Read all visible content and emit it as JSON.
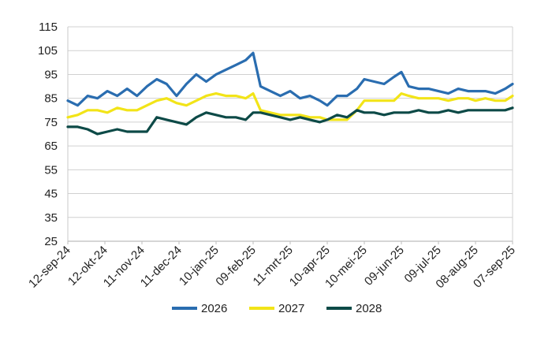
{
  "chart_data": {
    "type": "line",
    "title": "",
    "xlabel": "",
    "ylabel": "",
    "ylim": [
      25,
      115
    ],
    "yticks": [
      25,
      35,
      45,
      55,
      65,
      75,
      85,
      95,
      105,
      115
    ],
    "xlim": [
      "2024-09-12",
      "2025-09-07"
    ],
    "xticks": [
      "12-sep-24",
      "12-okt-24",
      "11-nov-24",
      "11-dec-24",
      "10-jan-25",
      "09-feb-25",
      "11-mrt-25",
      "10-apr-25",
      "10-mei-25",
      "09-jun-25",
      "09-jul-25",
      "08-aug-25",
      "07-sep-25"
    ],
    "grid": "horizontal",
    "legend_position": "bottom",
    "series": [
      {
        "name": "2026",
        "color": "#2a6db0",
        "x": [
          "2024-09-12",
          "2024-09-20",
          "2024-09-28",
          "2024-10-06",
          "2024-10-14",
          "2024-10-22",
          "2024-10-30",
          "2024-11-07",
          "2024-11-15",
          "2024-11-23",
          "2024-12-01",
          "2024-12-09",
          "2024-12-17",
          "2024-12-25",
          "2025-01-02",
          "2025-01-10",
          "2025-01-18",
          "2025-01-26",
          "2025-02-03",
          "2025-02-09",
          "2025-02-15",
          "2025-02-23",
          "2025-03-03",
          "2025-03-11",
          "2025-03-19",
          "2025-03-27",
          "2025-04-04",
          "2025-04-10",
          "2025-04-18",
          "2025-04-26",
          "2025-05-04",
          "2025-05-10",
          "2025-05-18",
          "2025-05-26",
          "2025-06-03",
          "2025-06-09",
          "2025-06-15",
          "2025-06-23",
          "2025-07-01",
          "2025-07-09",
          "2025-07-17",
          "2025-07-25",
          "2025-08-02",
          "2025-08-08",
          "2025-08-16",
          "2025-08-24",
          "2025-09-01",
          "2025-09-07"
        ],
        "values": [
          84,
          82,
          86,
          85,
          88,
          86,
          89,
          86,
          90,
          93,
          91,
          86,
          91,
          95,
          92,
          95,
          97,
          99,
          101,
          104,
          90,
          88,
          86,
          88,
          85,
          86,
          84,
          82,
          86,
          86,
          89,
          93,
          92,
          91,
          94,
          96,
          90,
          89,
          89,
          88,
          87,
          89,
          88,
          88,
          88,
          87,
          89,
          91
        ]
      },
      {
        "name": "2027",
        "color": "#f2e418",
        "x": [
          "2024-09-12",
          "2024-09-20",
          "2024-09-28",
          "2024-10-06",
          "2024-10-14",
          "2024-10-22",
          "2024-10-30",
          "2024-11-07",
          "2024-11-15",
          "2024-11-23",
          "2024-12-01",
          "2024-12-09",
          "2024-12-17",
          "2024-12-25",
          "2025-01-02",
          "2025-01-10",
          "2025-01-18",
          "2025-01-26",
          "2025-02-03",
          "2025-02-09",
          "2025-02-15",
          "2025-02-23",
          "2025-03-03",
          "2025-03-11",
          "2025-03-19",
          "2025-03-27",
          "2025-04-04",
          "2025-04-10",
          "2025-04-18",
          "2025-04-26",
          "2025-05-04",
          "2025-05-10",
          "2025-05-18",
          "2025-05-26",
          "2025-06-03",
          "2025-06-09",
          "2025-06-15",
          "2025-06-23",
          "2025-07-01",
          "2025-07-09",
          "2025-07-17",
          "2025-07-25",
          "2025-08-02",
          "2025-08-08",
          "2025-08-16",
          "2025-08-24",
          "2025-09-01",
          "2025-09-07"
        ],
        "values": [
          77,
          78,
          80,
          80,
          79,
          81,
          80,
          80,
          82,
          84,
          85,
          83,
          82,
          84,
          86,
          87,
          86,
          86,
          85,
          87,
          80,
          79,
          78,
          78,
          78,
          77,
          77,
          76,
          76,
          76,
          80,
          84,
          84,
          84,
          84,
          87,
          86,
          85,
          85,
          85,
          84,
          85,
          85,
          84,
          85,
          84,
          84,
          86
        ]
      },
      {
        "name": "2028",
        "color": "#0d4a47",
        "x": [
          "2024-09-12",
          "2024-09-20",
          "2024-09-28",
          "2024-10-06",
          "2024-10-14",
          "2024-10-22",
          "2024-10-30",
          "2024-11-07",
          "2024-11-15",
          "2024-11-23",
          "2024-12-01",
          "2024-12-09",
          "2024-12-17",
          "2024-12-25",
          "2025-01-02",
          "2025-01-10",
          "2025-01-18",
          "2025-01-26",
          "2025-02-03",
          "2025-02-09",
          "2025-02-15",
          "2025-02-23",
          "2025-03-03",
          "2025-03-11",
          "2025-03-19",
          "2025-03-27",
          "2025-04-04",
          "2025-04-10",
          "2025-04-18",
          "2025-04-26",
          "2025-05-04",
          "2025-05-10",
          "2025-05-18",
          "2025-05-26",
          "2025-06-03",
          "2025-06-09",
          "2025-06-15",
          "2025-06-23",
          "2025-07-01",
          "2025-07-09",
          "2025-07-17",
          "2025-07-25",
          "2025-08-02",
          "2025-08-08",
          "2025-08-16",
          "2025-08-24",
          "2025-09-01",
          "2025-09-07"
        ],
        "values": [
          73,
          73,
          72,
          70,
          71,
          72,
          71,
          71,
          71,
          77,
          76,
          75,
          74,
          77,
          79,
          78,
          77,
          77,
          76,
          79,
          79,
          78,
          77,
          76,
          77,
          76,
          75,
          76,
          78,
          77,
          80,
          79,
          79,
          78,
          79,
          79,
          79,
          80,
          79,
          79,
          80,
          79,
          80,
          80,
          80,
          80,
          80,
          81
        ]
      }
    ]
  }
}
